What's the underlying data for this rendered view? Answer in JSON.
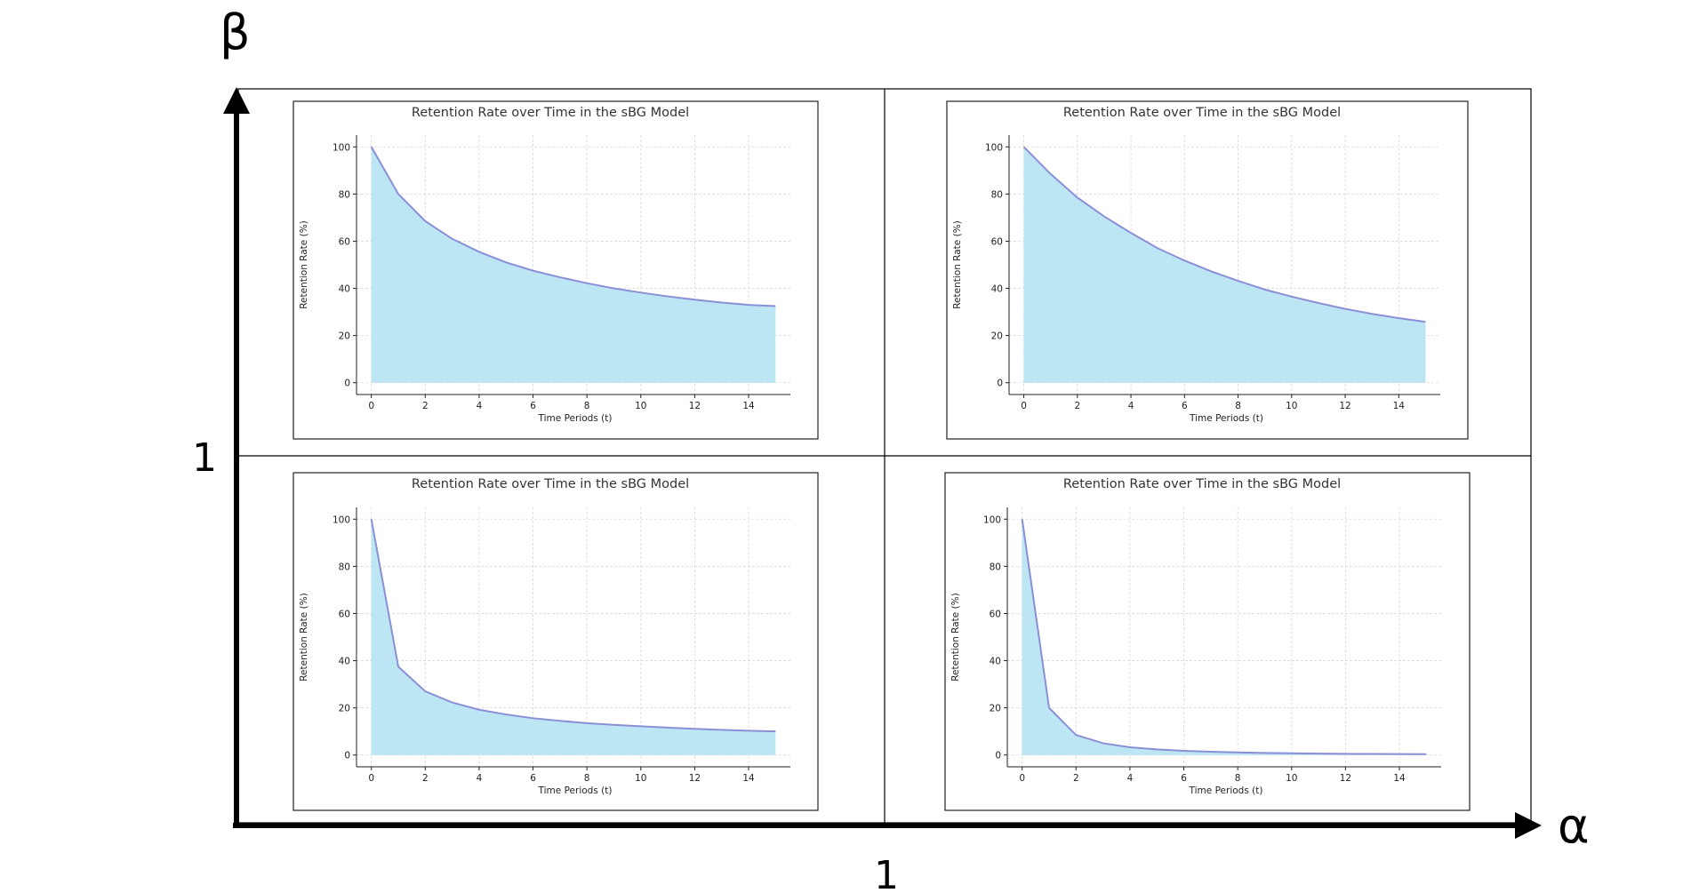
{
  "figure": {
    "alpha_label": "α",
    "beta_label": "β",
    "alpha_mark": "1",
    "beta_mark": "1"
  },
  "colors": {
    "fill": "#bde6f5",
    "line": "#8a8fd6",
    "grid": "#d9d9d9",
    "frame": "#222222"
  },
  "chart_data": [
    {
      "type": "area",
      "position": "top-left",
      "title": "Retention Rate over Time in the sBG Model",
      "xlabel": "Time Periods (t)",
      "ylabel": "Retention Rate (%)",
      "xlim": [
        0,
        15
      ],
      "ylim": [
        0,
        100
      ],
      "xticks": [
        0,
        2,
        4,
        6,
        8,
        10,
        12,
        14
      ],
      "yticks": [
        0,
        20,
        40,
        60,
        80,
        100
      ],
      "x": [
        0,
        1,
        2,
        3,
        4,
        5,
        6,
        7,
        8,
        9,
        10,
        11,
        12,
        13,
        14,
        15
      ],
      "values": [
        100,
        80,
        68.5,
        61,
        55.5,
        51,
        47.5,
        44.7,
        42.2,
        40,
        38.2,
        36.6,
        35.2,
        34,
        33,
        32.5
      ]
    },
    {
      "type": "area",
      "position": "top-right",
      "title": "Retention Rate over Time in the sBG Model",
      "xlabel": "Time Periods (t)",
      "ylabel": "Retention Rate (%)",
      "xlim": [
        0,
        15
      ],
      "ylim": [
        0,
        100
      ],
      "xticks": [
        0,
        2,
        4,
        6,
        8,
        10,
        12,
        14
      ],
      "yticks": [
        0,
        20,
        40,
        60,
        80,
        100
      ],
      "x": [
        0,
        1,
        2,
        3,
        4,
        5,
        6,
        7,
        8,
        9,
        10,
        11,
        12,
        13,
        14,
        15
      ],
      "values": [
        100,
        88.5,
        78.5,
        70.5,
        63.5,
        57,
        51.8,
        47.2,
        43.2,
        39.5,
        36.5,
        33.8,
        31.3,
        29.2,
        27.4,
        25.8
      ]
    },
    {
      "type": "area",
      "position": "bottom-left",
      "title": "Retention Rate over Time in the sBG Model",
      "xlabel": "Time Periods (t)",
      "ylabel": "Retention Rate (%)",
      "xlim": [
        0,
        15
      ],
      "ylim": [
        0,
        100
      ],
      "xticks": [
        0,
        2,
        4,
        6,
        8,
        10,
        12,
        14
      ],
      "yticks": [
        0,
        20,
        40,
        60,
        80,
        100
      ],
      "x": [
        0,
        1,
        2,
        3,
        4,
        5,
        6,
        7,
        8,
        9,
        10,
        11,
        12,
        13,
        14,
        15
      ],
      "values": [
        100,
        37.5,
        27,
        22.3,
        19.2,
        17.2,
        15.6,
        14.5,
        13.5,
        12.8,
        12.2,
        11.6,
        11.1,
        10.7,
        10.3,
        10
      ]
    },
    {
      "type": "area",
      "position": "bottom-right",
      "title": "Retention Rate over Time in the sBG Model",
      "xlabel": "Time Periods (t)",
      "ylabel": "Retention Rate (%)",
      "xlim": [
        0,
        15
      ],
      "ylim": [
        0,
        100
      ],
      "xticks": [
        0,
        2,
        4,
        6,
        8,
        10,
        12,
        14
      ],
      "yticks": [
        0,
        20,
        40,
        60,
        80,
        100
      ],
      "x": [
        0,
        1,
        2,
        3,
        4,
        5,
        6,
        7,
        8,
        9,
        10,
        11,
        12,
        13,
        14,
        15
      ],
      "values": [
        100,
        20,
        8.5,
        5,
        3.3,
        2.4,
        1.8,
        1.4,
        1.1,
        0.9,
        0.75,
        0.6,
        0.5,
        0.45,
        0.4,
        0.35
      ]
    }
  ]
}
